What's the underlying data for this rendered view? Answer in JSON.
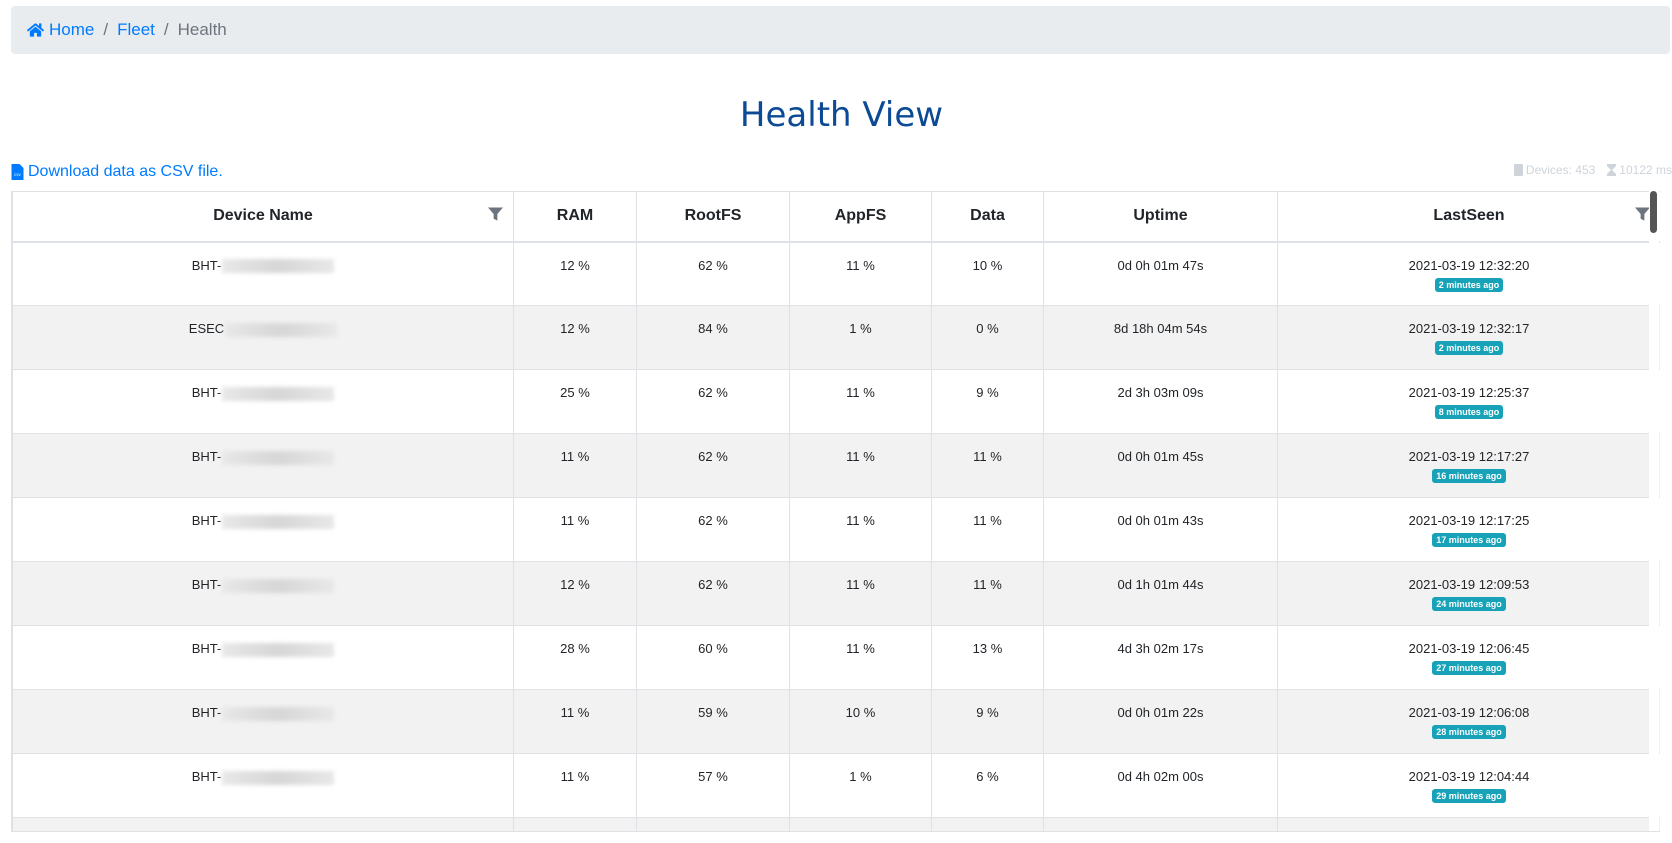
{
  "breadcrumb": {
    "home": "Home",
    "fleet": "Fleet",
    "current": "Health",
    "separator": "/"
  },
  "title": "Health View",
  "download_link": "Download data as CSV file.",
  "meta": {
    "devices": "Devices: 453",
    "timing": "10122 ms"
  },
  "columns": [
    "Device Name",
    "RAM",
    "RootFS",
    "AppFS",
    "Data",
    "Uptime",
    "LastSeen"
  ],
  "rows": [
    {
      "device": "BHT-",
      "ram": "12 %",
      "rootfs": "62 %",
      "appfs": "11 %",
      "data": "10 %",
      "uptime": "0d 0h 01m 47s",
      "lastseen": "2021-03-19 12:32:20",
      "ago": "2 minutes ago"
    },
    {
      "device": "ESEC",
      "ram": "12 %",
      "rootfs": "84 %",
      "appfs": "1 %",
      "data": "0 %",
      "uptime": "8d 18h 04m 54s",
      "lastseen": "2021-03-19 12:32:17",
      "ago": "2 minutes ago"
    },
    {
      "device": "BHT-",
      "ram": "25 %",
      "rootfs": "62 %",
      "appfs": "11 %",
      "data": "9 %",
      "uptime": "2d 3h 03m 09s",
      "lastseen": "2021-03-19 12:25:37",
      "ago": "8 minutes ago"
    },
    {
      "device": "BHT-",
      "ram": "11 %",
      "rootfs": "62 %",
      "appfs": "11 %",
      "data": "11 %",
      "uptime": "0d 0h 01m 45s",
      "lastseen": "2021-03-19 12:17:27",
      "ago": "16 minutes ago"
    },
    {
      "device": "BHT-",
      "ram": "11 %",
      "rootfs": "62 %",
      "appfs": "11 %",
      "data": "11 %",
      "uptime": "0d 0h 01m 43s",
      "lastseen": "2021-03-19 12:17:25",
      "ago": "17 minutes ago"
    },
    {
      "device": "BHT-",
      "ram": "12 %",
      "rootfs": "62 %",
      "appfs": "11 %",
      "data": "11 %",
      "uptime": "0d 1h 01m 44s",
      "lastseen": "2021-03-19 12:09:53",
      "ago": "24 minutes ago"
    },
    {
      "device": "BHT-",
      "ram": "28 %",
      "rootfs": "60 %",
      "appfs": "11 %",
      "data": "13 %",
      "uptime": "4d 3h 02m 17s",
      "lastseen": "2021-03-19 12:06:45",
      "ago": "27 minutes ago"
    },
    {
      "device": "BHT-",
      "ram": "11 %",
      "rootfs": "59 %",
      "appfs": "10 %",
      "data": "9 %",
      "uptime": "0d 0h 01m 22s",
      "lastseen": "2021-03-19 12:06:08",
      "ago": "28 minutes ago"
    },
    {
      "device": "BHT-",
      "ram": "11 %",
      "rootfs": "57 %",
      "appfs": "1 %",
      "data": "6 %",
      "uptime": "0d 4h 02m 00s",
      "lastseen": "2021-03-19 12:04:44",
      "ago": "29 minutes ago"
    }
  ],
  "colors": {
    "link": "#007bff",
    "title": "#0c4a96",
    "badge": "#17a2b8",
    "breadcrumb_bg": "#e9ecef"
  }
}
